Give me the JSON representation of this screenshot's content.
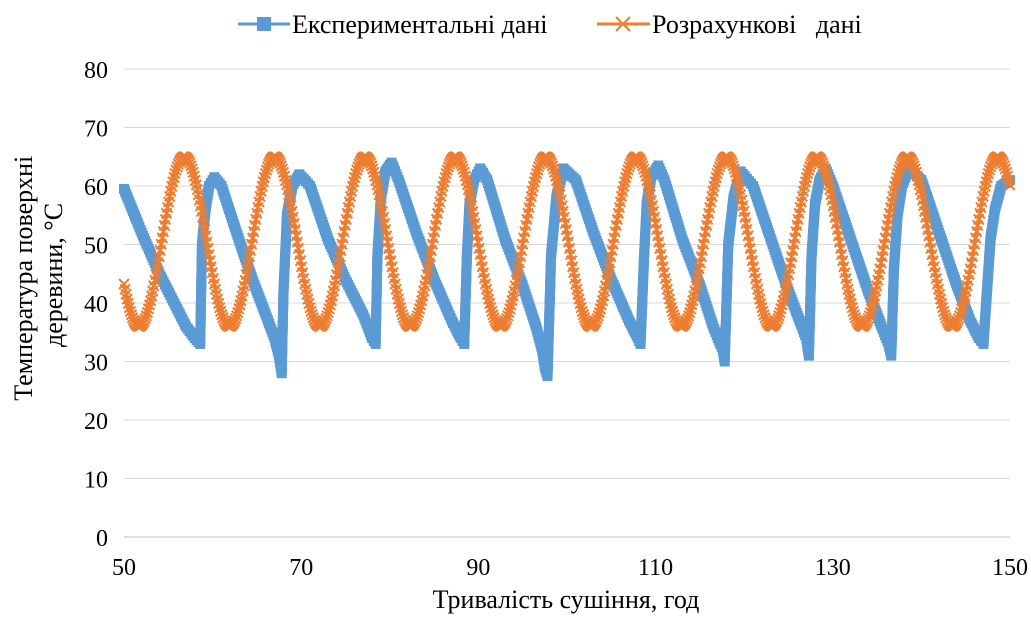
{
  "chart_data": {
    "type": "line",
    "xlabel": "Тривалість сушіння, год",
    "ylabel": "Температура поверхні деревини, °С",
    "xlim": [
      50,
      150
    ],
    "ylim": [
      0,
      80
    ],
    "x_ticks": [
      50,
      70,
      90,
      110,
      130,
      150
    ],
    "y_ticks": [
      0,
      10,
      20,
      30,
      40,
      50,
      60,
      70,
      80
    ],
    "grid": "horizontal",
    "legend_position": "top",
    "series": [
      {
        "name": "Експериментальні дані",
        "color": "#5b9bd5",
        "marker": "square",
        "x": [
          50.0,
          52.0,
          54.0,
          56.0,
          57.0,
          58.0,
          58.6,
          58.8,
          59.2,
          59.6,
          60.2,
          61.0,
          62.5,
          64.5,
          66.0,
          67.0,
          67.5,
          67.8,
          68.0,
          68.4,
          69.0,
          69.8,
          71.0,
          73.0,
          75.0,
          77.0,
          78.0,
          78.4,
          78.6,
          79.0,
          79.5,
          80.2,
          81.0,
          83.0,
          85.0,
          87.0,
          88.0,
          88.4,
          88.7,
          89.0,
          89.5,
          90.2,
          91.0,
          93.0,
          95.0,
          96.5,
          97.2,
          97.5,
          97.8,
          98.2,
          98.8,
          99.6,
          101.0,
          103.0,
          105.0,
          107.0,
          108.0,
          108.3,
          108.7,
          109.0,
          109.5,
          110.3,
          111.0,
          113.0,
          115.0,
          116.5,
          117.3,
          117.6,
          117.8,
          118.2,
          118.8,
          119.6,
          121.0,
          123.0,
          125.0,
          126.5,
          127.0,
          127.3,
          127.6,
          128.0,
          128.5,
          129.2,
          130.0,
          132.0,
          134.0,
          135.5,
          136.3,
          136.6,
          136.9,
          137.3,
          137.8,
          138.6,
          140.0,
          142.0,
          144.0,
          145.5,
          146.5,
          147.0,
          147.4,
          147.8,
          148.3,
          149.0,
          150.0
        ],
        "y": [
          59.5,
          52.0,
          45.0,
          39.0,
          36.0,
          34.0,
          33.0,
          50.0,
          56.0,
          60.0,
          61.5,
          60.0,
          53.0,
          44.0,
          38.0,
          34.0,
          31.0,
          28.0,
          42.0,
          55.0,
          60.0,
          62.0,
          60.0,
          51.0,
          44.0,
          38.0,
          34.0,
          33.0,
          48.0,
          58.0,
          62.5,
          64.0,
          61.0,
          52.0,
          44.0,
          37.0,
          34.0,
          33.0,
          48.0,
          57.0,
          61.0,
          63.0,
          61.0,
          51.0,
          43.0,
          36.0,
          32.0,
          29.0,
          27.5,
          48.0,
          58.0,
          63.0,
          61.0,
          52.0,
          44.0,
          37.0,
          34.0,
          33.0,
          48.0,
          57.0,
          61.5,
          63.5,
          61.0,
          51.0,
          43.0,
          36.0,
          33.0,
          32.0,
          30.0,
          50.0,
          58.0,
          62.5,
          60.0,
          51.0,
          42.0,
          36.0,
          34.0,
          31.0,
          48.0,
          57.0,
          61.0,
          63.0,
          60.0,
          51.0,
          42.0,
          36.0,
          33.0,
          31.0,
          46.0,
          55.0,
          60.0,
          63.0,
          61.0,
          52.0,
          43.0,
          37.0,
          34.0,
          33.0,
          42.0,
          51.0,
          56.0,
          60.0,
          61.0
        ]
      },
      {
        "name": "Розрахункові   дані",
        "color": "#ed7d31",
        "marker": "x",
        "amplitude": 14.5,
        "mean": 50.5,
        "period": 10.2,
        "phase_peak_x": 56.8
      }
    ]
  }
}
